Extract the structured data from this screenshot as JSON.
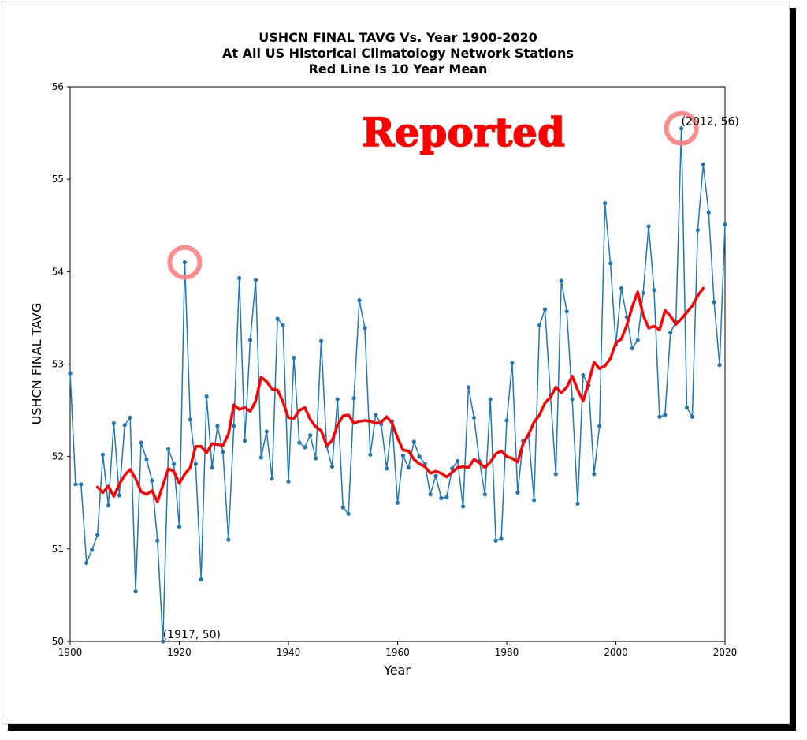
{
  "chart_data": {
    "type": "line",
    "title_lines": [
      "USHCN FINAL TAVG Vs. Year 1900-2020",
      "At All US Historical Climatology Network Stations",
      "Red Line Is 10 Year Mean"
    ],
    "xlabel": "Year",
    "ylabel": "USHCN FINAL TAVG",
    "xlim": [
      1900,
      2020
    ],
    "ylim": [
      50,
      56
    ],
    "x_ticks": [
      1900,
      1920,
      1940,
      1960,
      1980,
      2000,
      2020
    ],
    "y_ticks": [
      50,
      51,
      52,
      53,
      54,
      55,
      56
    ],
    "grid": false,
    "stamp_text": "Reported",
    "colors": {
      "series": "#1f77b4",
      "mean": "#ff0000",
      "stamp": "#ff0000",
      "circle": "#ff8080"
    },
    "annotations": [
      {
        "x": 1917,
        "y": 50.0,
        "text": "(1917, 50)"
      },
      {
        "x": 2012,
        "y": 55.55,
        "text": "(2012, 56)"
      }
    ],
    "highlight_circles": [
      {
        "x": 1921,
        "y": 54.1
      },
      {
        "x": 2012,
        "y": 55.55
      }
    ],
    "series": [
      {
        "x_start": 1900,
        "values": [
          52.9,
          51.7,
          51.7,
          50.85,
          50.99,
          51.15,
          52.02,
          51.47,
          52.36,
          51.58,
          52.34,
          52.42,
          50.54,
          52.15,
          51.97,
          51.74,
          51.09,
          50.0,
          52.08,
          51.92,
          51.24,
          54.1,
          52.4,
          51.92,
          50.67,
          52.65,
          51.88,
          52.33,
          52.05,
          51.1,
          52.33,
          53.93,
          52.17,
          53.26,
          53.91,
          51.99,
          52.27,
          51.76,
          53.49,
          53.42,
          51.73,
          53.07,
          52.15,
          52.1,
          52.23,
          51.98,
          53.25,
          52.11,
          51.89,
          52.62,
          51.45,
          51.38,
          52.63,
          53.69,
          53.39,
          52.02,
          52.45,
          52.35,
          51.87,
          52.38,
          51.5,
          52.01,
          51.88,
          52.16,
          52.0,
          51.92,
          51.59,
          51.79,
          51.55,
          51.56,
          51.87,
          51.95,
          51.46,
          52.75,
          52.42,
          51.95,
          51.59,
          52.62,
          51.09,
          51.11,
          52.39,
          53.01,
          51.61,
          52.17,
          52.23,
          51.53,
          53.42,
          53.59,
          52.67,
          51.81,
          53.9,
          53.57,
          52.62,
          51.49,
          52.88,
          52.77,
          51.81,
          52.33,
          54.74,
          54.09,
          53.21,
          53.82,
          53.51,
          53.17,
          53.26,
          53.77,
          54.49,
          53.8,
          52.43,
          52.45,
          53.34,
          53.46,
          55.55,
          52.53,
          52.43,
          54.45,
          55.16,
          54.64,
          53.67,
          52.99,
          54.51
        ]
      },
      {
        "name": "10 Year Mean",
        "x_start": 1905,
        "values": [
          51.67,
          51.61,
          51.68,
          51.57,
          51.7,
          51.8,
          51.86,
          51.76,
          51.62,
          51.59,
          51.63,
          51.51,
          51.69,
          51.87,
          51.84,
          51.71,
          51.81,
          51.88,
          52.11,
          52.11,
          52.04,
          52.14,
          52.13,
          52.12,
          52.24,
          52.56,
          52.51,
          52.53,
          52.49,
          52.6,
          52.86,
          52.81,
          52.73,
          52.72,
          52.59,
          52.42,
          52.41,
          52.5,
          52.53,
          52.4,
          52.32,
          52.28,
          52.12,
          52.17,
          52.34,
          52.44,
          52.45,
          52.36,
          52.38,
          52.39,
          52.38,
          52.36,
          52.37,
          52.43,
          52.36,
          52.2,
          52.07,
          52.06,
          51.97,
          51.92,
          51.89,
          51.82,
          51.84,
          51.82,
          51.78,
          51.83,
          51.88,
          51.89,
          51.88,
          51.97,
          51.93,
          51.88,
          51.94,
          52.03,
          52.06,
          52.0,
          51.98,
          51.94,
          52.14,
          52.24,
          52.37,
          52.45,
          52.58,
          52.64,
          52.75,
          52.69,
          52.75,
          52.87,
          52.72,
          52.6,
          52.8,
          53.02,
          52.95,
          52.98,
          53.06,
          53.23,
          53.27,
          53.42,
          53.62,
          53.78,
          53.53,
          53.39,
          53.41,
          53.37,
          53.58,
          53.52,
          53.43,
          53.49,
          53.56,
          53.63,
          53.74,
          53.82
        ]
      }
    ]
  }
}
